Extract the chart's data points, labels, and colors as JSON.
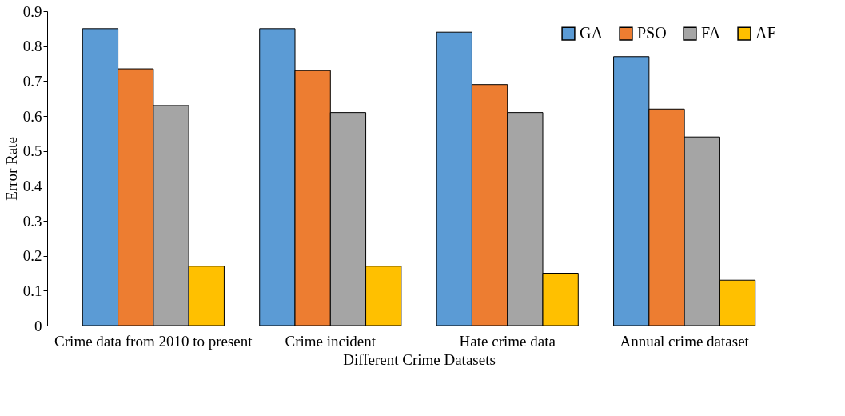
{
  "chart_data": {
    "type": "bar",
    "xlabel": "Different Crime Datasets",
    "ylabel": "Error Rate",
    "categories": [
      "Crime data from 2010 to present",
      "Crime incident",
      "Hate crime data",
      "Annual crime dataset"
    ],
    "series": [
      {
        "name": "GA",
        "color": "#5b9bd5",
        "values": [
          0.85,
          0.85,
          0.84,
          0.77
        ]
      },
      {
        "name": "PSO",
        "color": "#ed7d31",
        "values": [
          0.735,
          0.73,
          0.69,
          0.62
        ]
      },
      {
        "name": "FA",
        "color": "#a5a5a5",
        "values": [
          0.63,
          0.61,
          0.61,
          0.54
        ]
      },
      {
        "name": "AF",
        "color": "#ffc000",
        "values": [
          0.17,
          0.17,
          0.15,
          0.13
        ]
      }
    ],
    "ylim": [
      0,
      0.9
    ],
    "yticks": [
      0,
      0.1,
      0.2,
      0.3,
      0.4,
      0.5,
      0.6,
      0.7,
      0.8,
      0.9
    ],
    "grid": false,
    "legend": "top right"
  }
}
